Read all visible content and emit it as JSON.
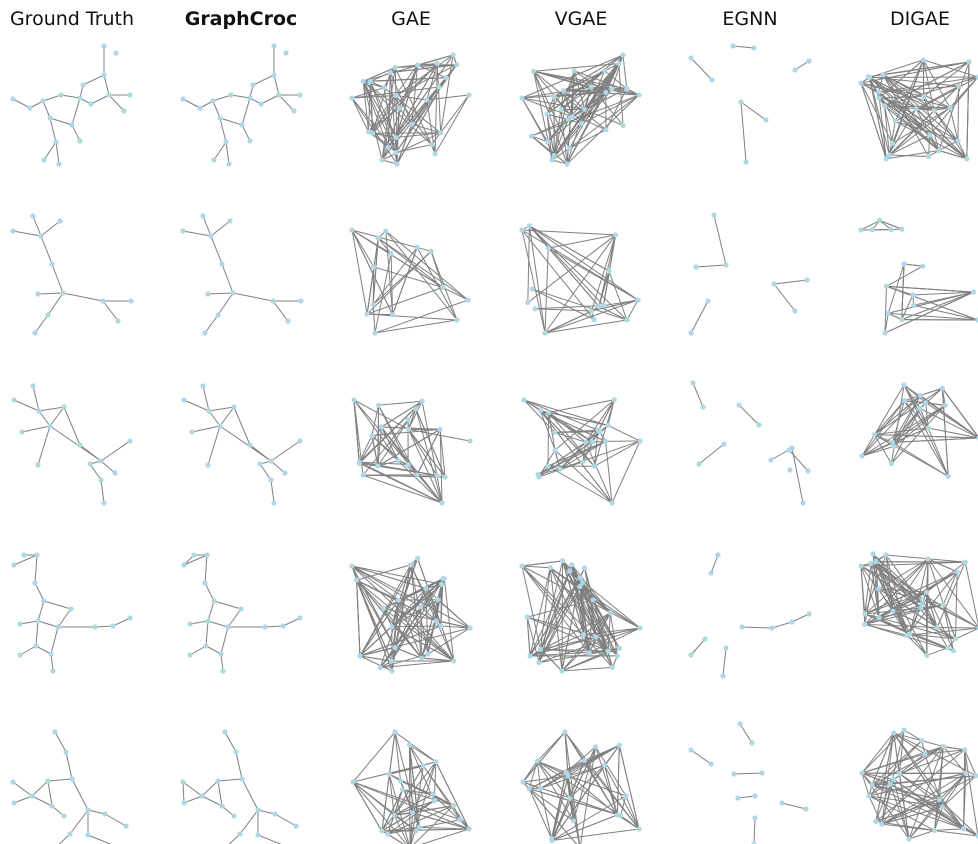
{
  "figure": {
    "columns": [
      {
        "title": "Ground Truth",
        "bold": false
      },
      {
        "title": "GraphCroc",
        "bold": true
      },
      {
        "title": "GAE",
        "bold": false
      },
      {
        "title": "VGAE",
        "bold": false
      },
      {
        "title": "EGNN",
        "bold": false
      },
      {
        "title": "DIGAE",
        "bold": false
      }
    ],
    "row_count": 5,
    "colors": {
      "node": "#add8e6",
      "edge": "#808080",
      "title": "#111111",
      "background": "#ffffff"
    }
  }
}
